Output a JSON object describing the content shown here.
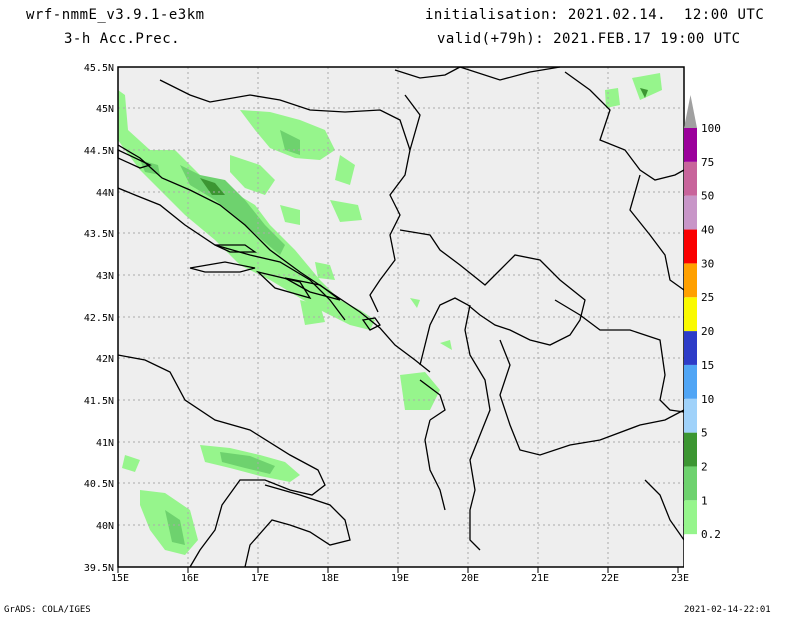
{
  "header": {
    "model": "wrf-nmmE_v3.9.1-e3km",
    "field": "3-h Acc.Prec.",
    "init": "initialisation: 2021.02.14.  12:00 UTC",
    "valid": "valid(+79h): 2021.FEB.17 19:00 UTC"
  },
  "footer": {
    "left": "GrADS: COLA/IGES",
    "right": "2021-02-14-22:01"
  },
  "axes": {
    "lon_labels": [
      "15E",
      "16E",
      "17E",
      "18E",
      "19E",
      "20E",
      "21E",
      "22E",
      "23E"
    ],
    "lat_labels": [
      "45.5N",
      "45N",
      "44.5N",
      "44N",
      "43.5N",
      "43N",
      "42.5N",
      "42N",
      "41.5N",
      "41N",
      "40.5N",
      "40N",
      "39.5N"
    ]
  },
  "legend": {
    "levels": [
      "0.2",
      "1",
      "2",
      "5",
      "10",
      "15",
      "20",
      "25",
      "30",
      "40",
      "50",
      "75",
      "100"
    ],
    "colors": [
      "#ffffff",
      "#96f58c",
      "#6ed26e",
      "#3c9632",
      "#a0d2fa",
      "#50a5f5",
      "#2d3cc8",
      "#fafa00",
      "#ffa000",
      "#fa0000",
      "#c896c8",
      "#c8649b",
      "#9b009b",
      "#a0a0a0"
    ]
  },
  "map": {
    "background": "#eeeeee",
    "border_color": "#000000",
    "grid": true
  }
}
